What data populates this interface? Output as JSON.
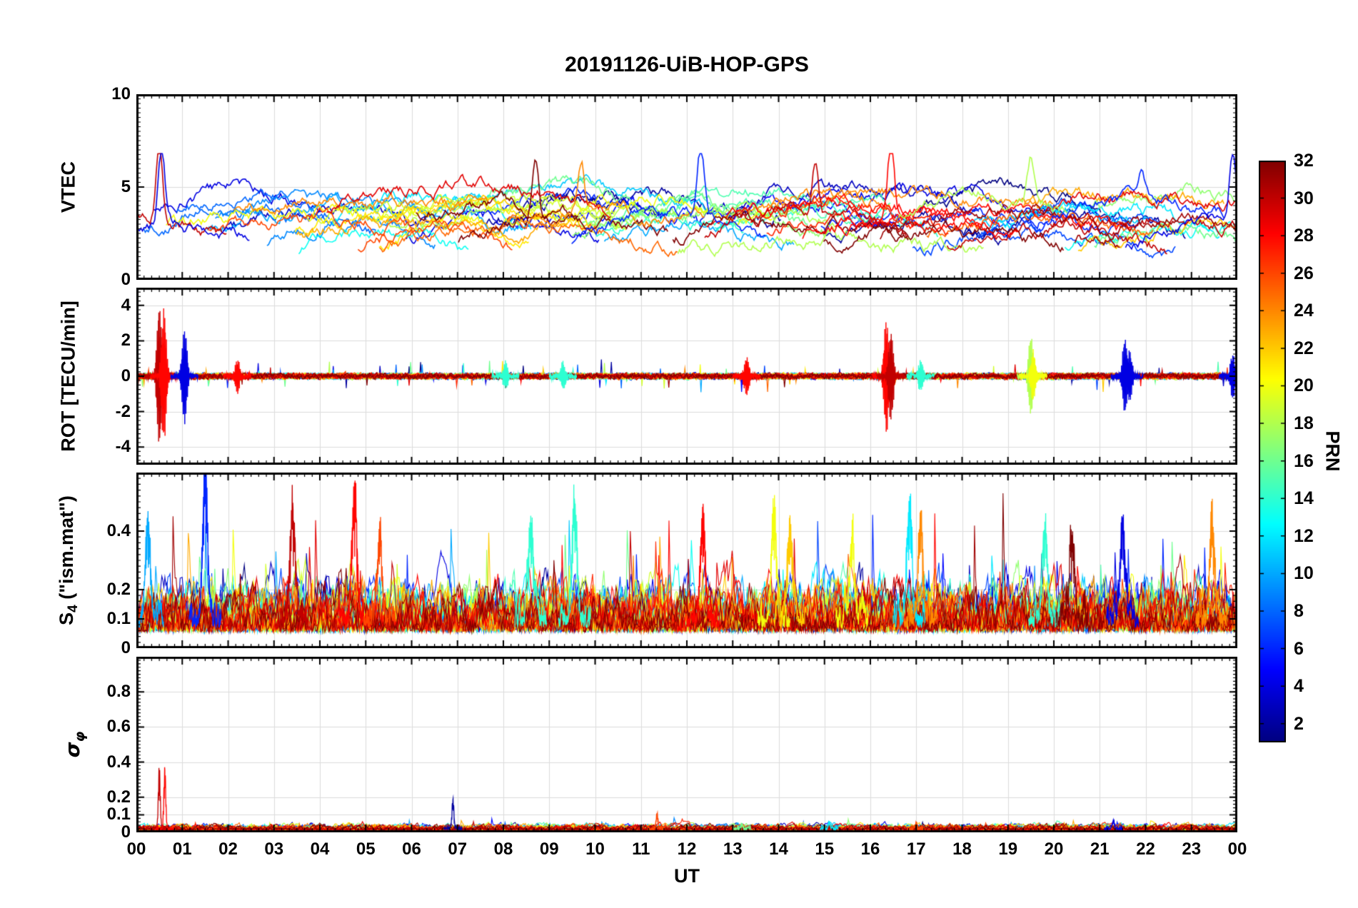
{
  "title": "20191126-UiB-HOP-GPS",
  "xlabel": "UT",
  "colorbar": {
    "label": "PRN",
    "min": 1,
    "max": 32,
    "ticks": [
      2,
      4,
      6,
      8,
      10,
      12,
      14,
      16,
      18,
      20,
      22,
      24,
      26,
      28,
      30,
      32
    ],
    "colormap": "jet"
  },
  "chart_data": {
    "type": "line",
    "style": "MATLAB multi-panel time series, one colored line per GPS satellite (PRN 1-32, jet colormap)",
    "n_series": 32,
    "x_range": [
      0,
      24
    ],
    "x_tick_labels": [
      "00",
      "01",
      "02",
      "03",
      "04",
      "05",
      "06",
      "07",
      "08",
      "09",
      "10",
      "11",
      "12",
      "13",
      "14",
      "15",
      "16",
      "17",
      "18",
      "19",
      "20",
      "21",
      "22",
      "23",
      "00"
    ],
    "grid": true,
    "panels": [
      {
        "name": "VTEC",
        "ylabel": "VTEC",
        "ylim": [
          0,
          10
        ],
        "yticks": [
          0,
          5,
          10
        ],
        "minor_step": 0.25,
        "typical_range": [
          1,
          5
        ],
        "events": [
          {
            "t": 0.5,
            "prn": 30,
            "peak": 6.6
          },
          {
            "t": 0.55,
            "prn": 4,
            "peak": 6.3
          },
          {
            "t": 8.7,
            "prn": 32,
            "peak": 5.9
          },
          {
            "t": 9.7,
            "prn": 24,
            "peak": 5.6
          },
          {
            "t": 12.3,
            "prn": 6,
            "peak": 5.8
          },
          {
            "t": 14.8,
            "prn": 30,
            "peak": 5.5
          },
          {
            "t": 16.45,
            "prn": 28,
            "peak": 6.6
          },
          {
            "t": 19.5,
            "prn": 18,
            "peak": 5.6
          },
          {
            "t": 21.9,
            "prn": 6,
            "peak": 4.6
          },
          {
            "t": 23.9,
            "prn": 4,
            "peak": 5.5
          }
        ],
        "gen": {
          "base_min": 1.5,
          "base_max": 4.0,
          "arc_amp": 1.1,
          "noise": 0.3,
          "dur": [
            3,
            7
          ],
          "step": 0.0333,
          "clamp": [
            0.8,
            6.8
          ],
          "lw": 1.6
        }
      },
      {
        "name": "ROT",
        "ylabel": "ROT [TECU/min]",
        "ylim": [
          -5,
          5
        ],
        "yticks": [
          -4,
          -2,
          0,
          2,
          4
        ],
        "minor_step": 0.25,
        "baseline_noise": 0.15,
        "events": [
          {
            "t": 0.5,
            "prn": 30,
            "amp": 4.0
          },
          {
            "t": 0.6,
            "prn": 28,
            "amp": -3.8
          },
          {
            "t": 1.05,
            "prn": 4,
            "amp": 2.8
          },
          {
            "t": 2.2,
            "prn": 28,
            "amp": -1.0
          },
          {
            "t": 8.05,
            "prn": 14,
            "amp": 0.8
          },
          {
            "t": 9.3,
            "prn": 14,
            "amp": -0.8
          },
          {
            "t": 13.3,
            "prn": 28,
            "amp": 1.1
          },
          {
            "t": 16.35,
            "prn": 28,
            "amp": 3.3
          },
          {
            "t": 16.45,
            "prn": 30,
            "amp": -2.6
          },
          {
            "t": 17.1,
            "prn": 14,
            "amp": 0.9
          },
          {
            "t": 19.5,
            "prn": 18,
            "amp": 2.3
          },
          {
            "t": 19.55,
            "prn": 20,
            "amp": -1.4
          },
          {
            "t": 21.55,
            "prn": 4,
            "amp": -2.2
          },
          {
            "t": 21.65,
            "prn": 4,
            "amp": 1.6
          },
          {
            "t": 23.9,
            "prn": 4,
            "amp": 1.3
          }
        ],
        "gen": {
          "step": 0.0167,
          "clamp": [
            -4.8,
            4.8
          ],
          "lw": 1.2
        }
      },
      {
        "name": "S4",
        "ylabel_parts": {
          "pre": "S",
          "sub": "4",
          "post": " (\"ism.mat\")"
        },
        "ylim": [
          0,
          0.6
        ],
        "yticks": [
          0,
          0.1,
          0.2,
          0.4
        ],
        "minor_step": 0.02,
        "baseline": 0.07,
        "typical_range": [
          0.05,
          0.3
        ],
        "events": [
          {
            "t": 0.25,
            "prn": 10,
            "peak": 0.45
          },
          {
            "t": 1.5,
            "prn": 6,
            "peak": 0.62
          },
          {
            "t": 3.4,
            "prn": 30,
            "peak": 0.48
          },
          {
            "t": 4.75,
            "prn": 28,
            "peak": 0.56
          },
          {
            "t": 5.3,
            "prn": 26,
            "peak": 0.38
          },
          {
            "t": 8.6,
            "prn": 14,
            "peak": 0.45
          },
          {
            "t": 9.55,
            "prn": 14,
            "peak": 0.52
          },
          {
            "t": 12.35,
            "prn": 28,
            "peak": 0.47
          },
          {
            "t": 13.9,
            "prn": 20,
            "peak": 0.5
          },
          {
            "t": 14.25,
            "prn": 22,
            "peak": 0.42
          },
          {
            "t": 15.6,
            "prn": 20,
            "peak": 0.36
          },
          {
            "t": 16.85,
            "prn": 12,
            "peak": 0.5
          },
          {
            "t": 17.1,
            "prn": 24,
            "peak": 0.42
          },
          {
            "t": 19.8,
            "prn": 14,
            "peak": 0.42
          },
          {
            "t": 20.4,
            "prn": 32,
            "peak": 0.4
          },
          {
            "t": 21.5,
            "prn": 4,
            "peak": 0.45
          },
          {
            "t": 23.45,
            "prn": 24,
            "peak": 0.45
          }
        ],
        "gen": {
          "step": 0.0222,
          "clamp": [
            0.03,
            0.72
          ],
          "lw": 1.1
        }
      },
      {
        "name": "sigma_phi",
        "ylabel_parts": {
          "pre": "σ",
          "sub": "φ"
        },
        "ylim": [
          0,
          1
        ],
        "yticks": [
          0,
          0.1,
          0.2,
          0.4,
          0.6,
          0.8
        ],
        "minor_step": 0.02,
        "baseline": 0.02,
        "events": [
          {
            "t": 0.5,
            "prn": 30,
            "peak": 0.38
          },
          {
            "t": 0.62,
            "prn": 28,
            "peak": 0.38
          },
          {
            "t": 6.9,
            "prn": 2,
            "peak": 0.19
          },
          {
            "t": 11.35,
            "prn": 26,
            "peak": 0.11
          },
          {
            "t": 13.2,
            "prn": 16,
            "peak": 0.05
          },
          {
            "t": 15.1,
            "prn": 12,
            "peak": 0.06
          },
          {
            "t": 17.0,
            "prn": 26,
            "peak": 0.05
          },
          {
            "t": 21.3,
            "prn": 4,
            "peak": 0.07
          }
        ],
        "gen": {
          "step": 0.0222,
          "clamp": [
            0.002,
            0.9
          ],
          "lw": 1.1
        }
      }
    ]
  }
}
